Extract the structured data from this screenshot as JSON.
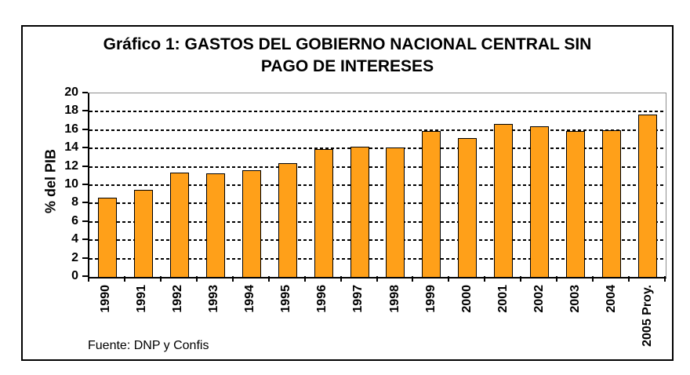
{
  "figure": {
    "source": "Fuente: DNP y Confis"
  },
  "chart_data": {
    "type": "bar",
    "title": "Gráfico 1: GASTOS DEL GOBIERNO NACIONAL CENTRAL SIN PAGO DE INTERESES",
    "categories": [
      "1990",
      "1991",
      "1992",
      "1993",
      "1994",
      "1995",
      "1996",
      "1997",
      "1998",
      "1999",
      "2000",
      "2001",
      "2002",
      "2003",
      "2004",
      "2005 Proy."
    ],
    "values": [
      8.6,
      9.5,
      11.4,
      11.3,
      11.6,
      12.4,
      13.9,
      14.2,
      14.1,
      15.9,
      15.1,
      16.7,
      16.4,
      15.9,
      16.0,
      17.7
    ],
    "xlabel": "",
    "ylabel": "% del PIB",
    "ylim": [
      0,
      20
    ],
    "ytick_step": 2,
    "grid": "horizontal-dashed-black",
    "legend_position": "none",
    "bar_color": "#FFA019",
    "bar_border_color": "#000000",
    "plot_border_color": "#8e8e8e"
  }
}
